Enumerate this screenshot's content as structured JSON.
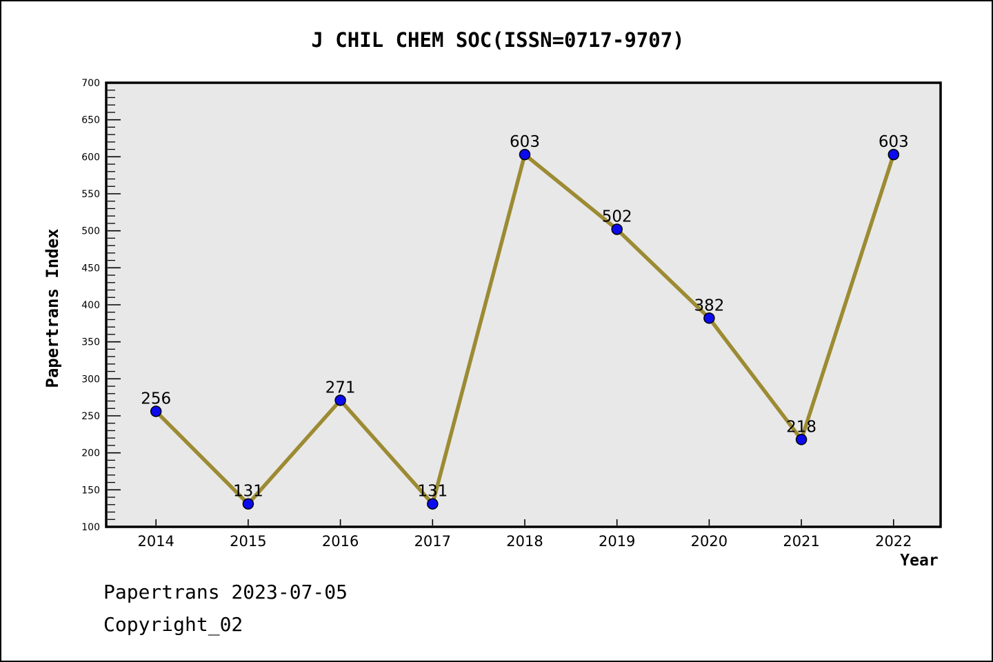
{
  "chart_data": {
    "type": "line",
    "title": "J CHIL CHEM SOC(ISSN=0717-9707)",
    "xlabel": "Year",
    "ylabel": "Papertrans Index",
    "categories": [
      "2014",
      "2015",
      "2016",
      "2017",
      "2018",
      "2019",
      "2020",
      "2021",
      "2022"
    ],
    "x": [
      2014,
      2015,
      2016,
      2017,
      2018,
      2019,
      2020,
      2021,
      2022
    ],
    "values": [
      256,
      131,
      271,
      131,
      603,
      502,
      382,
      218,
      603
    ],
    "point_labels": [
      "256",
      "131",
      "271",
      "131",
      "603",
      "502",
      "382",
      "218",
      "603"
    ],
    "ylim": [
      100,
      700
    ],
    "y_major_step": 50,
    "y_minor_step": 10,
    "x_range": [
      2013.46,
      2022.51
    ],
    "grid": false,
    "legend": "none",
    "tick_direction": "in",
    "colors": {
      "line": "#9c8b33",
      "marker_fill": "#0b0bee",
      "marker_edge": "#000000",
      "plot_bg": "#e8e8e8",
      "figure_bg": "#ffffff",
      "spine": "#000000",
      "text": "#000000"
    }
  },
  "footer": {
    "line1": "Papertrans 2023-07-05",
    "line2": "Copyright_02"
  }
}
